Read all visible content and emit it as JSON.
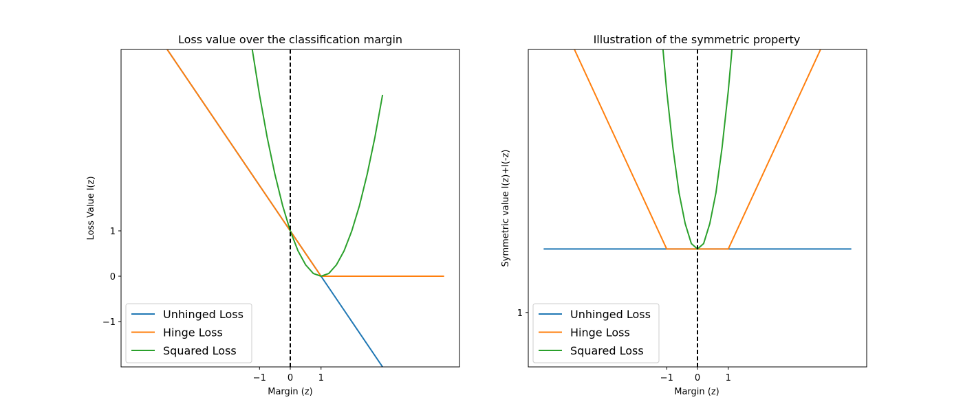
{
  "chart_data": [
    {
      "type": "line",
      "title": "Loss value over the classification margin",
      "xlabel": "Margin (z)",
      "ylabel": "Loss Value l(z)",
      "xlim": [
        -5.5,
        5.5
      ],
      "ylim": [
        -2,
        5
      ],
      "xticks": [
        {
          "value": -1,
          "label": "−1"
        },
        {
          "value": 0,
          "label": "0"
        },
        {
          "value": 1,
          "label": "1"
        }
      ],
      "yticks": [
        {
          "value": -1,
          "label": "−1"
        },
        {
          "value": 0,
          "label": "0"
        },
        {
          "value": 1,
          "label": "1"
        }
      ],
      "vline": {
        "x": 0,
        "style": "dashed",
        "color": "#000000"
      },
      "legend": {
        "placement": "lower-left"
      },
      "series": [
        {
          "name": "Unhinged Loss",
          "color": "#1f77b4",
          "x": [
            -5,
            3
          ],
          "y": [
            6,
            -2
          ]
        },
        {
          "name": "Hinge Loss",
          "color": "#ff7f0e",
          "x": [
            -5,
            1,
            5
          ],
          "y": [
            6,
            0,
            0
          ]
        },
        {
          "name": "Squared Loss",
          "color": "#2aa02b",
          "x": [
            -1.5,
            -1.25,
            -1,
            -0.75,
            -0.5,
            -0.25,
            0,
            0.25,
            0.5,
            0.75,
            1,
            1.25,
            1.5,
            1.75,
            2,
            2.25,
            2.5,
            2.75,
            3
          ],
          "y": [
            6.25,
            5.06,
            4,
            3.06,
            2.25,
            1.56,
            1,
            0.56,
            0.25,
            0.06,
            0,
            0.06,
            0.25,
            0.56,
            1,
            1.56,
            2.25,
            3.06,
            4
          ]
        }
      ]
    },
    {
      "type": "line",
      "title": "Illustration of the symmetric property",
      "xlabel": "Margin (z)",
      "ylabel": "Symmetric value l(z)+l(-z)",
      "xlim": [
        -5.5,
        5.5
      ],
      "ylim": [
        0.7,
        2.45
      ],
      "xticks": [
        {
          "value": -1,
          "label": "−1"
        },
        {
          "value": 0,
          "label": "0"
        },
        {
          "value": 1,
          "label": "1"
        }
      ],
      "yticks": [
        {
          "value": 1,
          "label": "1"
        }
      ],
      "vline": {
        "x": 0,
        "style": "dashed",
        "color": "#000000"
      },
      "legend": {
        "placement": "lower-left"
      },
      "series": [
        {
          "name": "Unhinged Loss",
          "color": "#1f77b4",
          "x": [
            -5,
            5
          ],
          "y": [
            1.35,
            1.35
          ]
        },
        {
          "name": "Hinge Loss",
          "color": "#ff7f0e",
          "x": [
            -4.0,
            -1.0,
            1.0,
            4.0
          ],
          "y": [
            2.45,
            1.35,
            1.35,
            2.45
          ]
        },
        {
          "name": "Squared Loss",
          "color": "#2aa02b",
          "x": [
            -1.2,
            -1.0,
            -0.8,
            -0.6,
            -0.4,
            -0.2,
            0,
            0.2,
            0.4,
            0.6,
            0.8,
            1.0,
            1.2
          ],
          "y": [
            2.6,
            2.22,
            1.91,
            1.66,
            1.49,
            1.38,
            1.35,
            1.38,
            1.49,
            1.66,
            1.91,
            2.22,
            2.6
          ]
        }
      ]
    }
  ]
}
